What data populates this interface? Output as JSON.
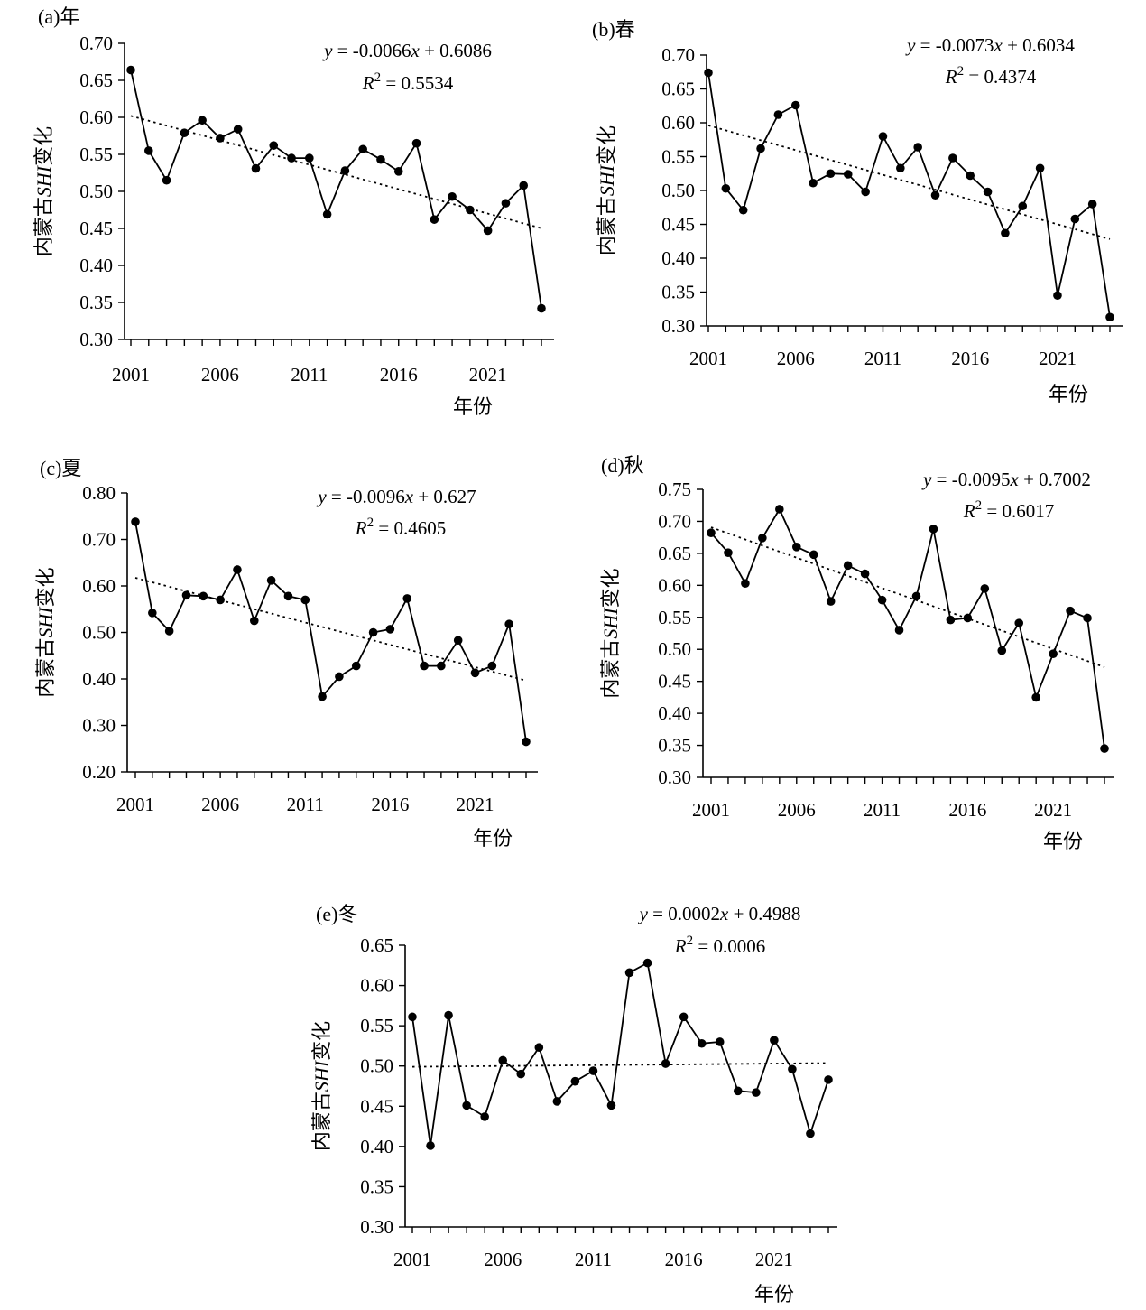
{
  "chart_data": [
    {
      "type": "line",
      "panel_label": "(a)年",
      "ylabel_prefix": "内蒙古",
      "ylabel_var": "SHI",
      "ylabel_suffix": "变化",
      "xlabel": "年份",
      "ylim": [
        0.3,
        0.7
      ],
      "yticks": [
        "0.70",
        "0.65",
        "0.60",
        "0.55",
        "0.50",
        "0.45",
        "0.40",
        "0.35",
        "0.30"
      ],
      "xticks": [
        "2001",
        "2006",
        "2011",
        "2016",
        "2021"
      ],
      "x": [
        2001,
        2002,
        2003,
        2004,
        2005,
        2006,
        2007,
        2008,
        2009,
        2010,
        2011,
        2012,
        2013,
        2014,
        2015,
        2016,
        2017,
        2018,
        2019,
        2020,
        2021,
        2022,
        2023,
        2024
      ],
      "series": [
        {
          "name": "SHI",
          "values": [
            0.664,
            0.555,
            0.515,
            0.579,
            0.596,
            0.572,
            0.584,
            0.531,
            0.562,
            0.545,
            0.545,
            0.469,
            0.528,
            0.557,
            0.543,
            0.527,
            0.565,
            0.462,
            0.493,
            0.475,
            0.447,
            0.484,
            0.508,
            0.342
          ]
        }
      ],
      "trend": {
        "slope": -0.0066,
        "intercept": 0.6086
      },
      "eq": {
        "lhs": "y",
        "mid": " = -0.0066",
        "var": "x",
        "tail": " + 0.6086",
        "r2_var": "R",
        "r2_sup": "2",
        "r2_val": " = 0.5534"
      }
    },
    {
      "type": "line",
      "panel_label": "(b)春",
      "ylabel_prefix": "内蒙古",
      "ylabel_var": "SHI",
      "ylabel_suffix": "变化",
      "xlabel": "年份",
      "ylim": [
        0.3,
        0.7
      ],
      "yticks": [
        "0.70",
        "0.65",
        "0.60",
        "0.55",
        "0.50",
        "0.45",
        "0.40",
        "0.35",
        "0.30"
      ],
      "xticks": [
        "2001",
        "2006",
        "2011",
        "2016",
        "2021"
      ],
      "x": [
        2001,
        2002,
        2003,
        2004,
        2005,
        2006,
        2007,
        2008,
        2009,
        2010,
        2011,
        2012,
        2013,
        2014,
        2015,
        2016,
        2017,
        2018,
        2019,
        2020,
        2021,
        2022,
        2023,
        2024
      ],
      "series": [
        {
          "name": "SHI",
          "values": [
            0.674,
            0.503,
            0.471,
            0.562,
            0.612,
            0.626,
            0.511,
            0.525,
            0.524,
            0.498,
            0.58,
            0.533,
            0.564,
            0.493,
            0.548,
            0.522,
            0.498,
            0.437,
            0.477,
            0.533,
            0.345,
            0.458,
            0.48,
            0.313
          ]
        }
      ],
      "trend": {
        "slope": -0.0073,
        "intercept": 0.6034
      },
      "eq": {
        "lhs": "y",
        "mid": " = -0.0073",
        "var": "x",
        "tail": " + 0.6034",
        "r2_var": "R",
        "r2_sup": "2",
        "r2_val": " = 0.4374"
      }
    },
    {
      "type": "line",
      "panel_label": "(c)夏",
      "ylabel_prefix": "内蒙古",
      "ylabel_var": "SHI",
      "ylabel_suffix": "变化",
      "xlabel": "年份",
      "ylim": [
        0.2,
        0.8
      ],
      "yticks": [
        "0.80",
        "0.70",
        "0.60",
        "0.50",
        "0.40",
        "0.30",
        "0.20"
      ],
      "xticks": [
        "2001",
        "2006",
        "2011",
        "2016",
        "2021"
      ],
      "x": [
        2001,
        2002,
        2003,
        2004,
        2005,
        2006,
        2007,
        2008,
        2009,
        2010,
        2011,
        2012,
        2013,
        2014,
        2015,
        2016,
        2017,
        2018,
        2019,
        2020,
        2021,
        2022,
        2023,
        2024
      ],
      "series": [
        {
          "name": "SHI",
          "values": [
            0.738,
            0.542,
            0.503,
            0.58,
            0.578,
            0.57,
            0.635,
            0.525,
            0.612,
            0.578,
            0.57,
            0.362,
            0.405,
            0.428,
            0.5,
            0.507,
            0.573,
            0.428,
            0.428,
            0.483,
            0.413,
            0.428,
            0.518,
            0.265
          ]
        }
      ],
      "trend": {
        "slope": -0.0096,
        "intercept": 0.627
      },
      "eq": {
        "lhs": "y",
        "mid": " =  -0.0096",
        "var": "x",
        "tail": " +  0.627",
        "r2_var": "R",
        "r2_sup": "2",
        "r2_val": " = 0.4605"
      }
    },
    {
      "type": "line",
      "panel_label": "(d)秋",
      "ylabel_prefix": "内蒙古",
      "ylabel_var": "SHI",
      "ylabel_suffix": "变化",
      "xlabel": "年份",
      "ylim": [
        0.3,
        0.75
      ],
      "yticks": [
        "0.75",
        "0.70",
        "0.65",
        "0.60",
        "0.55",
        "0.50",
        "0.45",
        "0.40",
        "0.35",
        "0.30"
      ],
      "xticks": [
        "2001",
        "2006",
        "2011",
        "2016",
        "2021"
      ],
      "x": [
        2001,
        2002,
        2003,
        2004,
        2005,
        2006,
        2007,
        2008,
        2009,
        2010,
        2011,
        2012,
        2013,
        2014,
        2015,
        2016,
        2017,
        2018,
        2019,
        2020,
        2021,
        2022,
        2023,
        2024
      ],
      "series": [
        {
          "name": "SHI",
          "values": [
            0.682,
            0.651,
            0.603,
            0.674,
            0.719,
            0.66,
            0.648,
            0.575,
            0.631,
            0.618,
            0.577,
            0.53,
            0.583,
            0.688,
            0.546,
            0.549,
            0.595,
            0.498,
            0.541,
            0.425,
            0.493,
            0.56,
            0.549,
            0.345
          ]
        }
      ],
      "trend": {
        "slope": -0.0095,
        "intercept": 0.7002
      },
      "eq": {
        "lhs": "y",
        "mid": " = -0.0095",
        "var": "x",
        "tail": " + 0.7002",
        "r2_var": "R",
        "r2_sup": "2",
        "r2_val": " = 0.6017"
      }
    },
    {
      "type": "line",
      "panel_label": "(e)冬",
      "ylabel_prefix": "内蒙古",
      "ylabel_var": "SHI",
      "ylabel_suffix": "变化",
      "xlabel": "年份",
      "ylim": [
        0.3,
        0.65
      ],
      "yticks": [
        "0.65",
        "0.60",
        "0.55",
        "0.50",
        "0.45",
        "0.40",
        "0.35",
        "0.30"
      ],
      "xticks": [
        "2001",
        "2006",
        "2011",
        "2016",
        "2021"
      ],
      "x": [
        2001,
        2002,
        2003,
        2004,
        2005,
        2006,
        2007,
        2008,
        2009,
        2010,
        2011,
        2012,
        2013,
        2014,
        2015,
        2016,
        2017,
        2018,
        2019,
        2020,
        2021,
        2022,
        2023,
        2024
      ],
      "series": [
        {
          "name": "SHI",
          "values": [
            0.561,
            0.401,
            0.563,
            0.451,
            0.437,
            0.507,
            0.49,
            0.523,
            0.456,
            0.481,
            0.494,
            0.451,
            0.616,
            0.628,
            0.503,
            0.561,
            0.528,
            0.53,
            0.469,
            0.467,
            0.532,
            0.496,
            0.416,
            0.483
          ]
        }
      ],
      "trend": {
        "slope": 0.0002,
        "intercept": 0.4988
      },
      "eq": {
        "lhs": "y",
        "mid": " = 0.0002",
        "var": "x",
        "tail": " + 0.4988",
        "r2_var": "R",
        "r2_sup": "2",
        "r2_val": " = 0.0006"
      }
    }
  ]
}
